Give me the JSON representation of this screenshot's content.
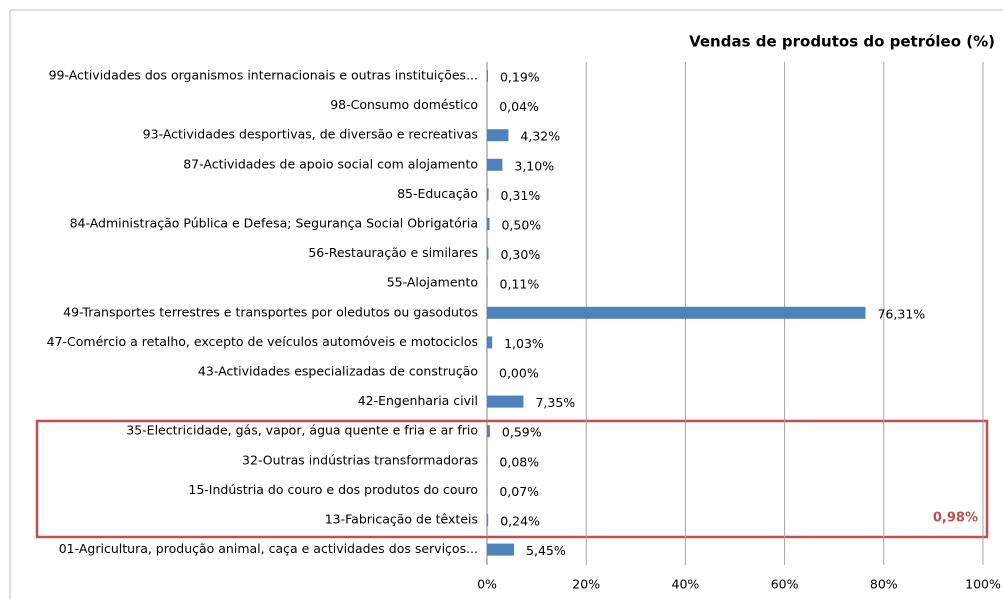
{
  "chart_data": {
    "type": "bar",
    "orientation": "horizontal",
    "title": "Vendas de produtos do petróleo (%)",
    "categories": [
      "99-Actividades dos organismos internacionais e outras instituições...",
      "98-Consumo doméstico",
      "93-Actividades desportivas, de diversão e recreativas",
      "87-Actividades de apoio social com alojamento",
      "85-Educação",
      "84-Administração Pública e Defesa;  Segurança Social Obrigatória",
      "56-Restauração e similares",
      "55-Alojamento",
      "49-Transportes terrestres e transportes por oledutos ou gasodutos",
      "47-Comércio a retalho, excepto de veículos automóveis e motociclos",
      "43-Actividades especializadas de construção",
      "42-Engenharia civil",
      "35-Electricidade, gás, vapor,  água quente e fria e ar frio",
      "32-Outras indústrias transformadoras",
      "15-Indústria do couro e dos produtos do couro",
      "13-Fabricação de têxteis",
      "01-Agricultura, produção animal, caça e actividades dos serviços..."
    ],
    "values": [
      0.19,
      0.04,
      4.32,
      3.1,
      0.31,
      0.5,
      0.3,
      0.11,
      76.31,
      1.03,
      0.0,
      7.35,
      0.59,
      0.08,
      0.07,
      0.24,
      5.45
    ],
    "value_labels": [
      "0,19%",
      "0,04%",
      "4,32%",
      "3,10%",
      "0,31%",
      "0,50%",
      "0,30%",
      "0,11%",
      "76,31%",
      "1,03%",
      "0,00%",
      "7,35%",
      "0,59%",
      "0,08%",
      "0,07%",
      "0,24%",
      "5,45%"
    ],
    "color": "#4f81bd",
    "xlim": [
      0,
      100
    ],
    "xticks": [
      {
        "value": 0,
        "label": "0%"
      },
      {
        "value": 20,
        "label": "20%"
      },
      {
        "value": 40,
        "label": "40%"
      },
      {
        "value": 60,
        "label": "60%"
      },
      {
        "value": 80,
        "label": "80%"
      },
      {
        "value": 100,
        "label": "100%"
      }
    ],
    "grid": true,
    "annotation": "0,98%"
  }
}
